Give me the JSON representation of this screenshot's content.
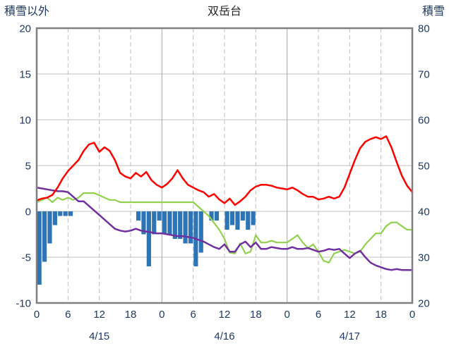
{
  "chart_data": {
    "type": "combo",
    "title": "双岳台",
    "left_axis": {
      "title": "積雪以外",
      "min": -10,
      "max": 20,
      "tick_values": [
        20,
        15,
        10,
        5,
        0,
        -5,
        -10
      ]
    },
    "right_axis": {
      "title": "積雪",
      "min": 20,
      "max": 80,
      "tick_values": [
        80,
        70,
        60,
        50,
        40,
        30,
        20
      ]
    },
    "x_axis": {
      "hours_total": 72,
      "tick_hours": [
        0,
        6,
        12,
        18,
        24,
        30,
        36,
        42,
        48,
        54,
        60,
        66,
        72
      ],
      "tick_labels": [
        "0",
        "6",
        "12",
        "18",
        "0",
        "6",
        "12",
        "18",
        "0",
        "6",
        "12",
        "18",
        "0"
      ],
      "day_labels": [
        {
          "label": "4/15",
          "center_hour": 12
        },
        {
          "label": "4/16",
          "center_hour": 36
        },
        {
          "label": "4/17",
          "center_hour": 60
        }
      ]
    },
    "style": {
      "grid_color": "#c0c0c0",
      "day_grid_color": "#a6a6a6",
      "border_color": "#808080",
      "axis_text_color": "#1f3864",
      "title_text_color": "#262626"
    },
    "series": [
      {
        "name": "blue-bars",
        "type": "bar",
        "axis": "left",
        "color": "#2e75b6",
        "values": [
          -8,
          -5.5,
          -3.5,
          -1.5,
          -0.5,
          -0.5,
          -0.5,
          0,
          0,
          0,
          0,
          0,
          0,
          0,
          0,
          0,
          0,
          0,
          0,
          -1,
          -2.5,
          -6,
          -2.5,
          -1,
          -2.5,
          -2.5,
          -3,
          -3,
          -3.5,
          -3.5,
          -6,
          -4.5,
          0,
          -1,
          -1,
          0,
          -2,
          -1.5,
          -2,
          -1,
          -2,
          -1.5,
          0,
          0,
          0,
          0,
          0,
          0,
          0,
          0,
          0,
          0,
          0,
          0,
          0,
          0,
          0,
          0,
          0,
          0,
          0,
          0,
          0,
          0,
          0,
          0,
          0,
          0,
          0,
          0,
          0,
          0
        ]
      },
      {
        "name": "green-line",
        "type": "line",
        "axis": "right",
        "color": "#92d050",
        "width": 2.2,
        "values": [
          42,
          42.5,
          43,
          42,
          43,
          42.5,
          43,
          42.5,
          43,
          44,
          44,
          44,
          43.5,
          43,
          42.5,
          42.5,
          42,
          42,
          42,
          42,
          42,
          42,
          42,
          42,
          42,
          42,
          42,
          42,
          42,
          42,
          42,
          41,
          40,
          39,
          37.5,
          36,
          34,
          31,
          30.8,
          33,
          30.8,
          31.2,
          34.8,
          33.2,
          33.2,
          33.6,
          33.2,
          33.2,
          33.2,
          34,
          34.8,
          33.2,
          32,
          32.8,
          31.2,
          29.2,
          28.8,
          30.8,
          31.2,
          31.6,
          31.2,
          30.8,
          31.2,
          32.8,
          34,
          35.2,
          35.2,
          36.8,
          37.6,
          37.6,
          36.8,
          36,
          36
        ]
      },
      {
        "name": "purple-line",
        "type": "line",
        "axis": "left",
        "color": "#7030a0",
        "width": 2.5,
        "values": [
          2.6,
          2.5,
          2.4,
          2.3,
          2.2,
          2.2,
          2.1,
          1.6,
          1.1,
          1.1,
          0.6,
          0.1,
          -0.4,
          -0.9,
          -1.4,
          -1.9,
          -2.1,
          -2.2,
          -2.1,
          -1.9,
          -2.1,
          -2.2,
          -2.3,
          -2.4,
          -2.4,
          -2.5,
          -2.6,
          -2.7,
          -2.7,
          -2.8,
          -2.9,
          -3.1,
          -3.3,
          -3.6,
          -3.9,
          -4.1,
          -3.6,
          -4.4,
          -4.4,
          -3.6,
          -3.3,
          -3.9,
          -3.4,
          -4.1,
          -4.1,
          -3.9,
          -4,
          -4.1,
          -4.1,
          -3.9,
          -4.1,
          -4.1,
          -4,
          -4.2,
          -4.4,
          -4.3,
          -4.1,
          -4.2,
          -4.1,
          -4.6,
          -5.1,
          -4.6,
          -4.3,
          -5,
          -5.6,
          -5.9,
          -6.1,
          -6.3,
          -6.4,
          -6.3,
          -6.4,
          -6.4,
          -6.4
        ]
      },
      {
        "name": "red-line",
        "type": "line",
        "axis": "left",
        "color": "#ff0000",
        "width": 2.5,
        "values": [
          1.2,
          1.4,
          1.5,
          1.8,
          2.6,
          3.6,
          4.4,
          5,
          5.6,
          6.6,
          7.3,
          7.5,
          6.5,
          7,
          6.6,
          5.6,
          4.2,
          3.8,
          3.6,
          4.2,
          3.8,
          4.3,
          3.4,
          2.9,
          2.6,
          3,
          3.6,
          4.5,
          3.6,
          2.9,
          2.6,
          2.3,
          2.1,
          1.6,
          1.9,
          1.3,
          0.9,
          1.4,
          0.7,
          1.1,
          1.6,
          2.3,
          2.7,
          2.9,
          2.9,
          2.8,
          2.6,
          2.5,
          2.4,
          2.6,
          2.3,
          1.9,
          1.6,
          1.6,
          1.3,
          1.4,
          1.6,
          1.4,
          1.6,
          2.6,
          4.1,
          5.6,
          6.9,
          7.6,
          7.9,
          8.1,
          7.9,
          8.2,
          7,
          5.4,
          3.9,
          2.8,
          2.1
        ]
      }
    ]
  }
}
